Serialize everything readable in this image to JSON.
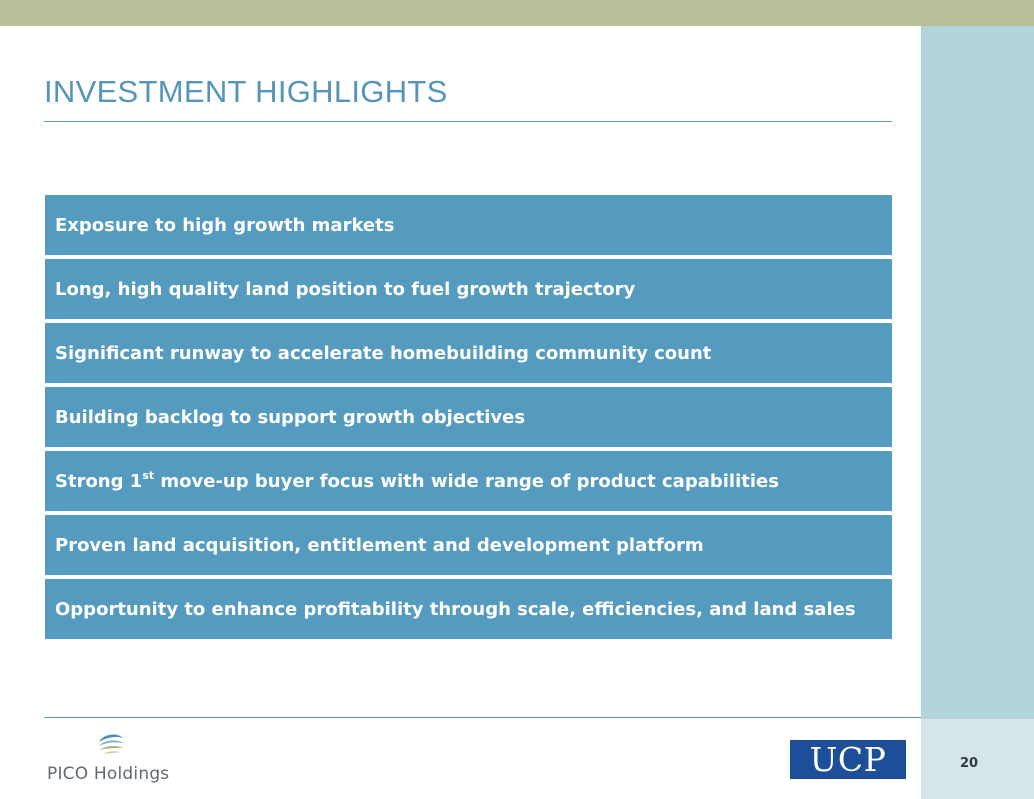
{
  "slide": {
    "title": "INVESTMENT HIGHLIGHTS",
    "page_number": "20"
  },
  "highlights": [
    {
      "text": "Exposure to high growth markets"
    },
    {
      "text": "Long, high quality land position to fuel growth trajectory"
    },
    {
      "text": "Significant runway to accelerate homebuilding community count"
    },
    {
      "text": "Building backlog to support growth objectives"
    },
    {
      "pre": "Strong 1",
      "sup": "st",
      "post": " move-up buyer focus with wide range of product capabilities"
    },
    {
      "text": "Proven land acquisition, entitlement and development platform"
    },
    {
      "text": "Opportunity to enhance profitability through scale, efficiencies, and land sales"
    }
  ],
  "logos": {
    "pico": "PICO Holdings",
    "ucp": "UCP"
  },
  "colors": {
    "top_bar": "#b9bf9b",
    "right_panel": "#b2d5dc",
    "title": "#5596b8",
    "highlight_bg": "#559bbf",
    "ucp_blue": "#1d4f99"
  }
}
